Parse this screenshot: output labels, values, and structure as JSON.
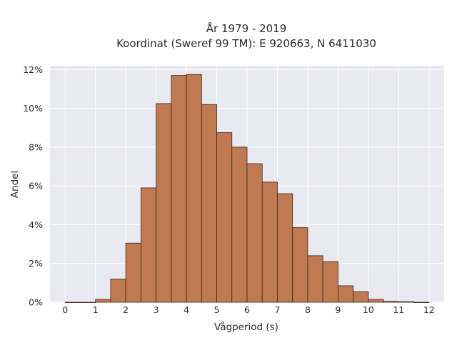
{
  "chart_data": {
    "type": "bar",
    "title_lines": [
      "År 1979 - 2019",
      "Koordinat (Sweref 99 TM): E 920663, N 6411030"
    ],
    "xlabel": "Vågperiod (s)",
    "ylabel": "Andel",
    "bin_width": 0.5,
    "bin_starts": [
      0,
      0.5,
      1,
      1.5,
      2,
      2.5,
      3,
      3.5,
      4,
      4.5,
      5,
      5.5,
      6,
      6.5,
      7,
      7.5,
      8,
      8.5,
      9,
      9.5,
      10,
      10.5,
      11,
      11.5
    ],
    "values": [
      0.0,
      0.0,
      0.15,
      1.2,
      3.05,
      5.9,
      10.25,
      11.7,
      11.75,
      10.2,
      8.75,
      8.0,
      7.15,
      6.2,
      5.6,
      3.85,
      2.4,
      2.1,
      0.85,
      0.55,
      0.15,
      0.05,
      0.03,
      0.0
    ],
    "xlim": [
      -0.5,
      12.5
    ],
    "ylim": [
      0,
      12.2
    ],
    "x_ticks": [
      0,
      1,
      2,
      3,
      4,
      5,
      6,
      7,
      8,
      9,
      10,
      11,
      12
    ],
    "y_ticks": [
      0,
      2,
      4,
      6,
      8,
      10,
      12
    ],
    "y_tick_labels": [
      "0%",
      "2%",
      "4%",
      "6%",
      "8%",
      "10%",
      "12%"
    ],
    "grid": true,
    "colors": {
      "bar_fill": "#c07a52",
      "bar_edge": "#3d2418",
      "plot_bg": "#e9e9f1",
      "grid": "#ffffff"
    }
  }
}
